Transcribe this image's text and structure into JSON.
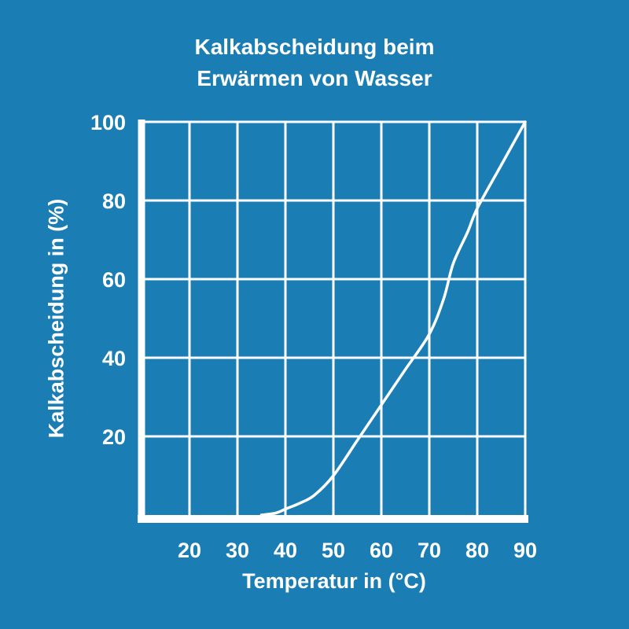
{
  "title_line1": "Kalkabscheidung beim",
  "title_line2": "Erwärmen von Wasser",
  "colors": {
    "background": "#1a7db3",
    "ink": "#ffffff"
  },
  "chart_data": {
    "type": "line",
    "title": "Kalkabscheidung beim Erwärmen von Wasser",
    "xlabel": "Temperatur in (°C)",
    "ylabel": "Kalkabscheidung in (%)",
    "xlim": [
      10,
      90
    ],
    "ylim": [
      0,
      100
    ],
    "x_ticks": [
      20,
      30,
      40,
      50,
      60,
      70,
      80,
      90
    ],
    "y_ticks": [
      20,
      40,
      60,
      80,
      100
    ],
    "grid": true,
    "series": [
      {
        "x": [
          35,
          38,
          40,
          43,
          46,
          50,
          55,
          60,
          65,
          70,
          73,
          75,
          78,
          80,
          85,
          90
        ],
        "y": [
          0,
          0.5,
          1.5,
          3,
          5,
          10,
          19,
          28,
          37,
          46,
          55,
          64,
          72,
          78,
          89,
          100
        ]
      }
    ]
  }
}
